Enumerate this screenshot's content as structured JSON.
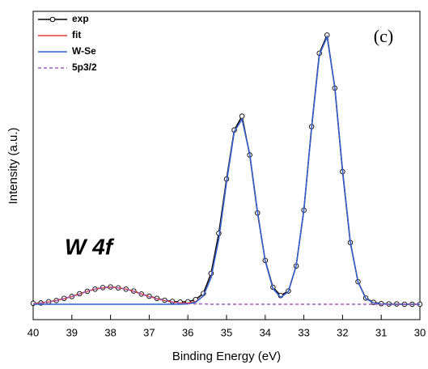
{
  "chart_data": {
    "type": "line",
    "x_label": "Binding Energy (eV)",
    "y_label": "Intensity (a.u.)",
    "annotations": [
      "(c)",
      "W 4f"
    ],
    "xlim": [
      40,
      30
    ],
    "xticks": [
      40,
      39,
      38,
      37,
      36,
      35,
      34,
      33,
      32,
      31,
      30
    ],
    "ylim": [
      0,
      100
    ],
    "legend": "upper-left",
    "x": [
      40.0,
      39.8,
      39.6,
      39.4,
      39.2,
      39.0,
      38.8,
      38.6,
      38.4,
      38.2,
      38.0,
      37.8,
      37.6,
      37.4,
      37.2,
      37.0,
      36.8,
      36.6,
      36.4,
      36.2,
      36.0,
      35.8,
      35.6,
      35.4,
      35.2,
      35.0,
      34.8,
      34.6,
      34.4,
      34.2,
      34.0,
      33.8,
      33.6,
      33.4,
      33.2,
      33.0,
      32.8,
      32.6,
      32.4,
      32.2,
      32.0,
      31.8,
      31.6,
      31.4,
      31.2,
      31.0,
      30.8,
      30.6,
      30.4,
      30.2,
      30.0
    ],
    "series": [
      {
        "name": "exp",
        "color": "#000000",
        "marker": "circle",
        "dashed": false,
        "values": [
          5.3,
          5.4,
          5.8,
          6.2,
          6.9,
          7.5,
          8.4,
          9.2,
          9.9,
          10.4,
          10.6,
          10.3,
          9.9,
          9.3,
          8.3,
          7.6,
          6.9,
          6.3,
          5.9,
          5.7,
          5.8,
          6.5,
          8.5,
          15.0,
          28.0,
          45.6,
          61.5,
          66.0,
          53.4,
          34.6,
          19.2,
          10.5,
          7.8,
          9.3,
          17.4,
          35.5,
          62.6,
          86.4,
          92.3,
          75.1,
          48.0,
          25.0,
          12.3,
          7.0,
          5.6,
          5.2,
          5.1,
          5.1,
          5.0,
          5.0,
          5.0
        ]
      },
      {
        "name": "fit",
        "color": "#e0403c",
        "marker": null,
        "dashed": false,
        "values": [
          5.2,
          5.4,
          5.7,
          6.2,
          6.8,
          7.5,
          8.3,
          9.2,
          9.9,
          10.3,
          10.5,
          10.3,
          9.9,
          9.2,
          8.3,
          7.5,
          6.8,
          6.2,
          5.7,
          5.4,
          5.4,
          5.8,
          7.7,
          13.7,
          26.2,
          44.6,
          61.0,
          65.0,
          53.7,
          35.0,
          19.0,
          10.1,
          7.2,
          9.1,
          17.5,
          35.7,
          62.2,
          85.9,
          91.7,
          75.4,
          48.4,
          25.3,
          12.2,
          6.9,
          5.4,
          5.1,
          5.0,
          5.0,
          5.0,
          5.0,
          5.0
        ]
      },
      {
        "name": "W-Se",
        "color": "#2a62d6",
        "marker": null,
        "dashed": false,
        "values": [
          5.0,
          5.0,
          5.0,
          5.0,
          5.0,
          5.0,
          5.0,
          5.0,
          5.0,
          5.0,
          5.0,
          5.0,
          5.0,
          5.0,
          5.0,
          5.0,
          5.0,
          5.0,
          5.0,
          5.0,
          5.1,
          5.6,
          7.7,
          13.6,
          26.2,
          44.6,
          61.0,
          65.0,
          53.7,
          35.0,
          19.0,
          10.1,
          7.2,
          9.1,
          17.5,
          35.7,
          62.2,
          85.9,
          91.7,
          75.4,
          48.4,
          25.3,
          12.2,
          6.9,
          5.4,
          5.1,
          5.0,
          5.0,
          5.0,
          5.0,
          5.0
        ]
      },
      {
        "name": "5p3/2",
        "color": "#a35bbf",
        "marker": null,
        "dashed": true,
        "values": [
          5.2,
          5.4,
          5.7,
          6.2,
          6.8,
          7.5,
          8.3,
          9.2,
          9.9,
          10.3,
          10.5,
          10.3,
          9.9,
          9.2,
          8.3,
          7.5,
          6.8,
          6.2,
          5.7,
          5.4,
          5.2,
          5.1,
          5.1,
          5.0,
          5.0,
          5.0,
          5.0,
          5.0,
          5.0,
          5.0,
          5.0,
          5.0,
          5.0,
          5.0,
          5.0,
          5.0,
          5.0,
          5.0,
          5.0,
          5.0,
          5.0,
          5.0,
          5.0,
          5.0,
          5.0,
          5.0,
          5.0,
          5.0,
          5.0,
          5.0,
          5.0
        ]
      }
    ]
  }
}
